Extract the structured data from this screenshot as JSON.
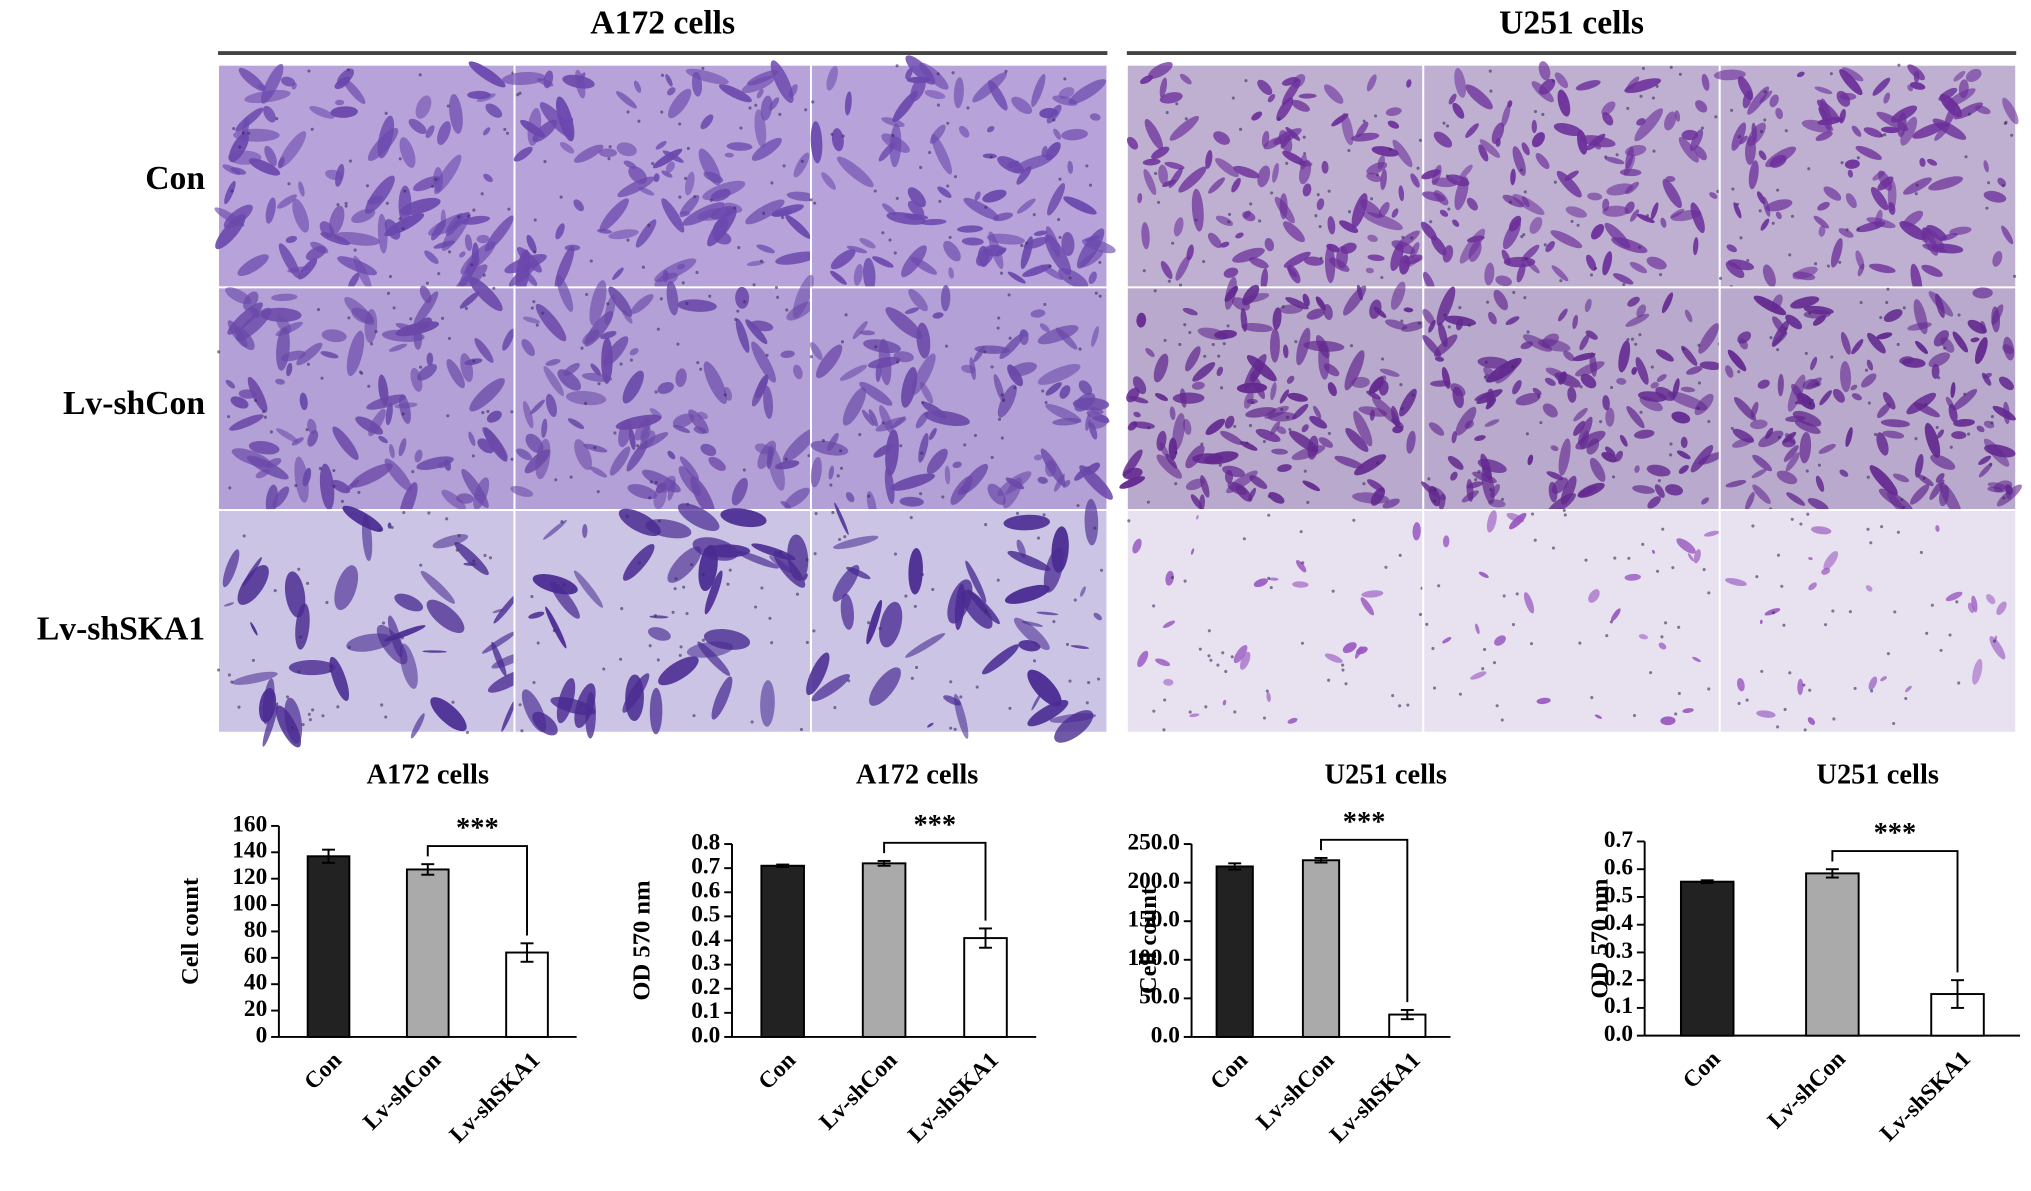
{
  "micrographs": {
    "groups": [
      "A172 cells",
      "U251 cells"
    ],
    "rows": [
      "Con",
      "Lv-shCon",
      "Lv-shSKA1"
    ]
  },
  "chart_data": [
    {
      "type": "bar",
      "title": "A172 cells",
      "y_label": "Cell count",
      "categories": [
        "Con",
        "Lv-shCon",
        "Lv-shSKA1"
      ],
      "values": [
        137,
        127,
        64
      ],
      "errors": [
        5,
        4,
        7
      ],
      "colors": [
        "#222222",
        "#aaaaaa",
        "#ffffff"
      ],
      "annotation": "***",
      "ylim": [
        0,
        160
      ],
      "yticks": [
        0,
        20,
        40,
        60,
        80,
        100,
        120,
        140,
        160
      ]
    },
    {
      "type": "bar",
      "title": "A172 cells",
      "y_label": "OD 570 nm",
      "categories": [
        "Con",
        "Lv-shCon",
        "Lv-shSKA1"
      ],
      "values": [
        0.71,
        0.72,
        0.41
      ],
      "errors": [
        0.005,
        0.01,
        0.04
      ],
      "colors": [
        "#222222",
        "#aaaaaa",
        "#ffffff"
      ],
      "annotation": "***",
      "ylim": [
        0,
        0.8
      ],
      "yticks": [
        {
          "value": 0,
          "label": "0.0"
        },
        0.1,
        0.2,
        0.3,
        0.4,
        0.5,
        0.6,
        0.7,
        0.8
      ]
    },
    {
      "type": "bar",
      "title": "U251 cells",
      "y_label": "Cell count",
      "categories": [
        "Con",
        "Lv-shCon",
        "Lv-shSKA1"
      ],
      "values": [
        221,
        229,
        29
      ],
      "errors": [
        4,
        3,
        6
      ],
      "colors": [
        "#222222",
        "#aaaaaa",
        "#ffffff"
      ],
      "annotation": "***",
      "ylim": [
        0,
        250
      ],
      "yticks": [
        {
          "value": 0,
          "label": "0.0"
        },
        {
          "value": 50,
          "label": "50.0"
        },
        {
          "value": 100,
          "label": "100.0"
        },
        {
          "value": 150,
          "label": "150.0"
        },
        {
          "value": 200,
          "label": "200.0"
        },
        {
          "value": 250,
          "label": "250.0"
        }
      ]
    },
    {
      "type": "bar",
      "title": "U251 cells",
      "y_label": "OD 570 nm",
      "categories": [
        "Con",
        "Lv-shCon",
        "Lv-shSKA1"
      ],
      "values": [
        0.555,
        0.585,
        0.15
      ],
      "errors": [
        0.005,
        0.015,
        0.05
      ],
      "colors": [
        "#222222",
        "#aaaaaa",
        "#ffffff"
      ],
      "annotation": "***",
      "ylim": [
        0,
        0.7
      ],
      "yticks": [
        {
          "value": 0,
          "label": "0.0"
        },
        0.1,
        0.2,
        0.3,
        0.4,
        0.5,
        0.6,
        0.7
      ]
    }
  ]
}
